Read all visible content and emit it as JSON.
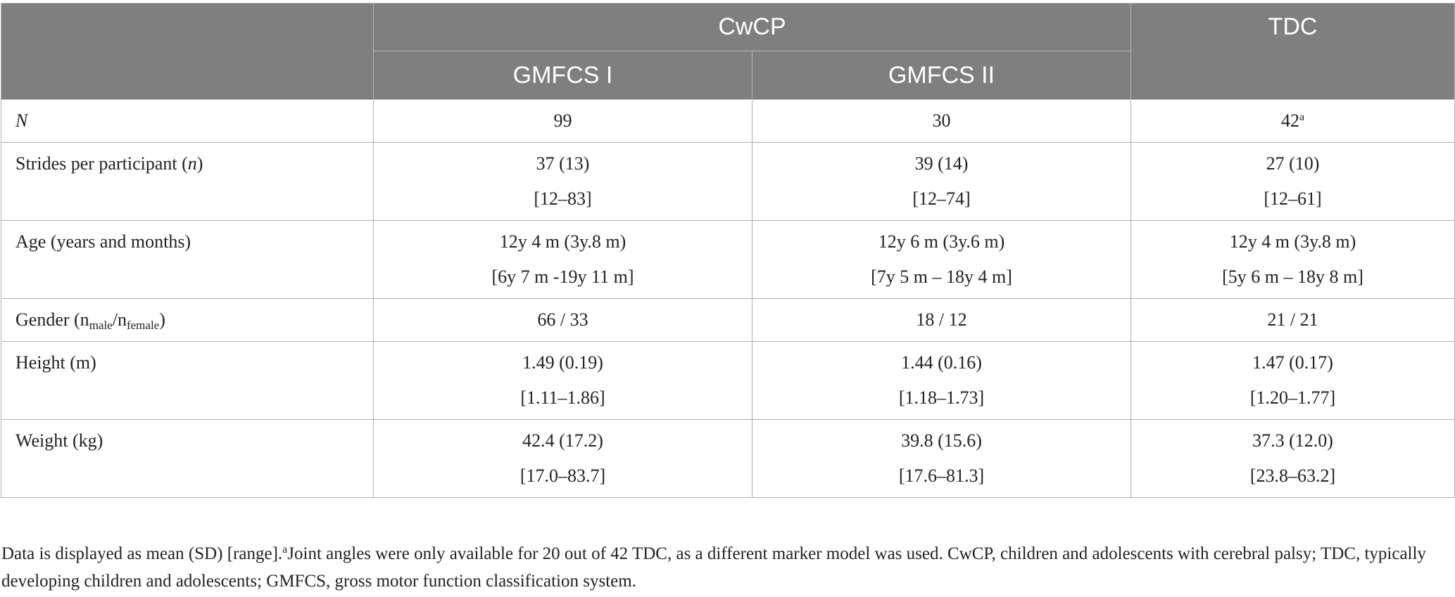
{
  "table": {
    "headers": {
      "group_cwcp": "CwCP",
      "group_tdc": "TDC",
      "gmfcs1": "GMFCS I",
      "gmfcs2": "GMFCS II"
    },
    "rows": {
      "n": {
        "label": "N",
        "gmfcs1": "99",
        "gmfcs2": "30",
        "tdc": "42",
        "tdc_note_marker": "a"
      },
      "strides": {
        "label_prefix": "Strides per participant (",
        "label_italic": "n",
        "label_suffix": ")",
        "gmfcs1": {
          "mean_sd": "37 (13)",
          "range": "[12–83]"
        },
        "gmfcs2": {
          "mean_sd": "39 (14)",
          "range": "[12–74]"
        },
        "tdc": {
          "mean_sd": "27 (10)",
          "range": "[12–61]"
        }
      },
      "age": {
        "label": "Age (years and months)",
        "gmfcs1": {
          "mean_sd": "12y 4 m (3y.8 m)",
          "range": "[6y 7 m -19y 11 m]"
        },
        "gmfcs2": {
          "mean_sd": "12y 6 m (3y.6 m)",
          "range": "[7y 5 m – 18y 4 m]"
        },
        "tdc": {
          "mean_sd": "12y 4 m (3y.8 m)",
          "range": "[5y 6 m – 18y 8 m]"
        }
      },
      "gender": {
        "label_prefix": "Gender (n",
        "label_sub_male": "male",
        "label_mid": "/n",
        "label_sub_female": "female",
        "label_suffix": ")",
        "gmfcs1": "66 / 33",
        "gmfcs2": "18 / 12",
        "tdc": "21 / 21"
      },
      "height": {
        "label": "Height (m)",
        "gmfcs1": {
          "mean_sd": "1.49 (0.19)",
          "range": "[1.11–1.86]"
        },
        "gmfcs2": {
          "mean_sd": "1.44 (0.16)",
          "range": "[1.18–1.73]"
        },
        "tdc": {
          "mean_sd": "1.47 (0.17)",
          "range": "[1.20–1.77]"
        }
      },
      "weight": {
        "label": "Weight (kg)",
        "gmfcs1": {
          "mean_sd": "42.4 (17.2)",
          "range": "[17.0–83.7]"
        },
        "gmfcs2": {
          "mean_sd": "39.8 (15.6)",
          "range": "[17.6–81.3]"
        },
        "tdc": {
          "mean_sd": "37.3 (12.0)",
          "range": "[23.8–63.2]"
        }
      }
    }
  },
  "footnote": {
    "part1": "Data is displayed as mean (SD) [range].",
    "marker": "a",
    "part2": "Joint angles were only available for 20 out of 42 TDC, as a different marker model was used. CwCP, children and adolescents with cerebral palsy; TDC, typically developing children and adolescents; GMFCS, gross motor function classification system."
  }
}
